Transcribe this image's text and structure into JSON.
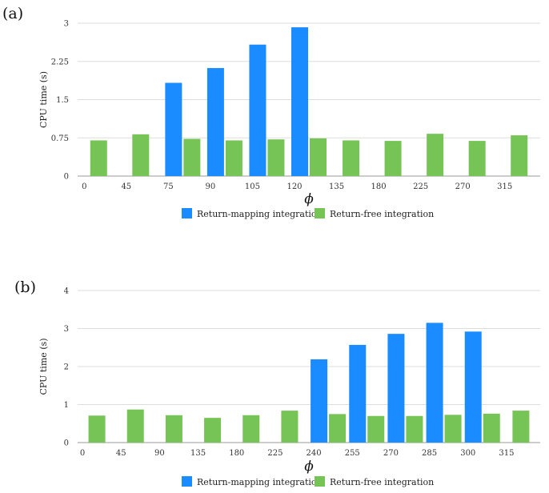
{
  "colors": {
    "return_mapping": "#1a8cff",
    "return_free": "#76c456",
    "grid": "#dddddd",
    "axis": "#999999"
  },
  "chart_data": [
    {
      "type": "bar",
      "panel_label": "(a)",
      "categories": [
        "0",
        "45",
        "75",
        "90",
        "105",
        "120",
        "135",
        "180",
        "225",
        "270",
        "315"
      ],
      "series": [
        {
          "name": "Return-mapping integration",
          "values": [
            null,
            null,
            1.83,
            2.12,
            2.58,
            2.92,
            null,
            null,
            null,
            null,
            null
          ]
        },
        {
          "name": "Return-free integration",
          "values": [
            0.7,
            0.82,
            0.73,
            0.7,
            0.72,
            0.74,
            0.7,
            0.69,
            0.83,
            0.69,
            0.8
          ]
        }
      ],
      "xlabel": "ϕ",
      "ylabel": "CPU time (s)",
      "ylim": [
        0,
        3
      ],
      "yticks": [
        "0",
        "0.75",
        "1.5",
        "2.25",
        "3"
      ],
      "grid": true,
      "legend": "bottom"
    },
    {
      "type": "bar",
      "panel_label": "(b)",
      "categories": [
        "0",
        "45",
        "90",
        "135",
        "180",
        "225",
        "240",
        "255",
        "270",
        "285",
        "300",
        "315"
      ],
      "series": [
        {
          "name": "Return-mapping integration",
          "values": [
            null,
            null,
            null,
            null,
            null,
            null,
            2.19,
            2.57,
            2.86,
            3.15,
            2.92,
            null
          ]
        },
        {
          "name": "Return-free integration",
          "values": [
            0.71,
            0.87,
            0.72,
            0.65,
            0.72,
            0.84,
            0.75,
            0.7,
            0.7,
            0.73,
            0.76,
            0.84
          ]
        }
      ],
      "xlabel": "ϕ",
      "ylabel": "CPU time (s)",
      "ylim": [
        0,
        4
      ],
      "yticks": [
        "0",
        "1",
        "2",
        "3",
        "4"
      ],
      "grid": true,
      "legend": "bottom"
    }
  ]
}
